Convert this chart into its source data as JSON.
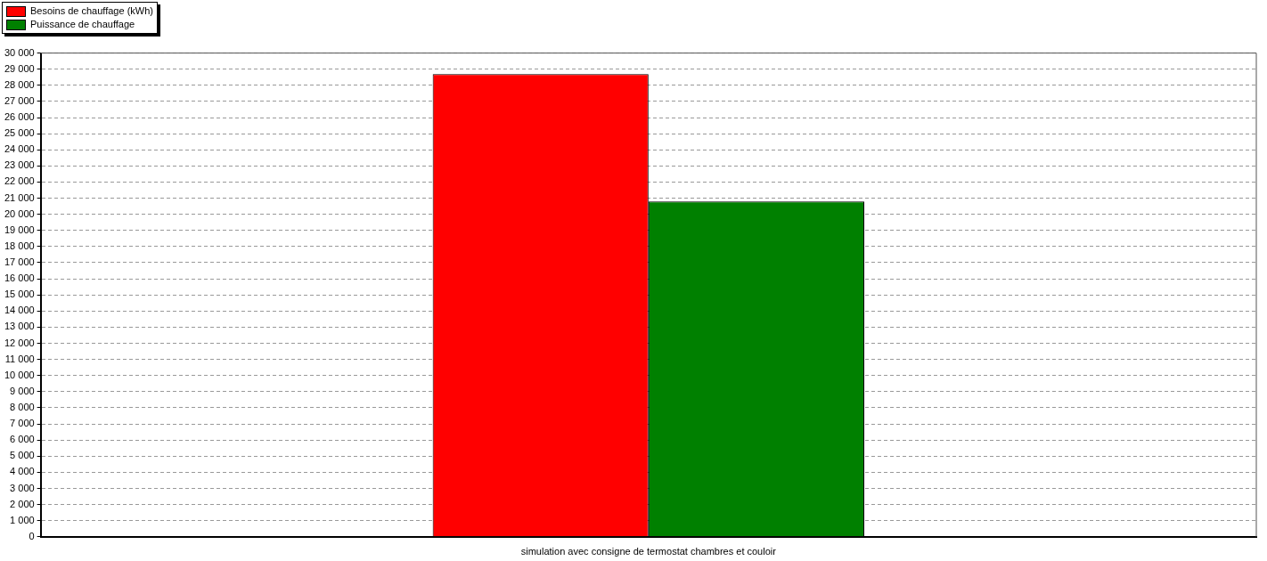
{
  "chart_data": {
    "type": "bar",
    "categories": [
      "simulation avec consigne de termostat chambres et couloir"
    ],
    "series": [
      {
        "name": "Besoins de chauffage (kWh)",
        "color": "#ff0000",
        "values": [
          28700
        ]
      },
      {
        "name": "Puissance de chauffage",
        "color": "#008000",
        "values": [
          20800
        ]
      }
    ],
    "ylim": [
      0,
      30000
    ],
    "yticks": [
      {
        "value": 0,
        "label": "0"
      },
      {
        "value": 1000,
        "label": "1 000"
      },
      {
        "value": 2000,
        "label": "2 000"
      },
      {
        "value": 3000,
        "label": "3 000"
      },
      {
        "value": 4000,
        "label": "4 000"
      },
      {
        "value": 5000,
        "label": "5 000"
      },
      {
        "value": 6000,
        "label": "6 000"
      },
      {
        "value": 7000,
        "label": "7 000"
      },
      {
        "value": 8000,
        "label": "8 000"
      },
      {
        "value": 9000,
        "label": "9 000"
      },
      {
        "value": 10000,
        "label": "10 000"
      },
      {
        "value": 11000,
        "label": "11 000"
      },
      {
        "value": 12000,
        "label": "12 000"
      },
      {
        "value": 13000,
        "label": "13 000"
      },
      {
        "value": 14000,
        "label": "14 000"
      },
      {
        "value": 15000,
        "label": "15 000"
      },
      {
        "value": 16000,
        "label": "16 000"
      },
      {
        "value": 17000,
        "label": "17 000"
      },
      {
        "value": 18000,
        "label": "18 000"
      },
      {
        "value": 19000,
        "label": "19 000"
      },
      {
        "value": 20000,
        "label": "20 000"
      },
      {
        "value": 21000,
        "label": "21 000"
      },
      {
        "value": 22000,
        "label": "22 000"
      },
      {
        "value": 23000,
        "label": "23 000"
      },
      {
        "value": 24000,
        "label": "24 000"
      },
      {
        "value": 25000,
        "label": "25 000"
      },
      {
        "value": 26000,
        "label": "26 000"
      },
      {
        "value": 27000,
        "label": "27 000"
      },
      {
        "value": 28000,
        "label": "28 000"
      },
      {
        "value": 29000,
        "label": "29 000"
      },
      {
        "value": 30000,
        "label": "30 000"
      }
    ],
    "grid": "y",
    "legend": "top left"
  }
}
